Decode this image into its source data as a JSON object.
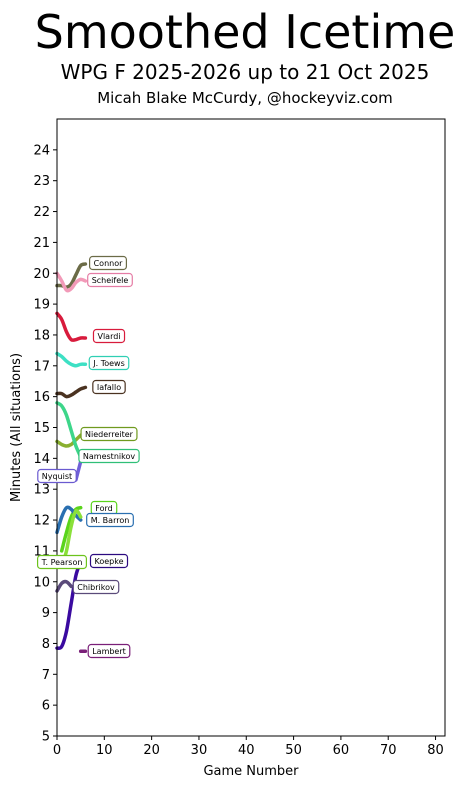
{
  "title": "Smoothed Icetime",
  "subtitle": "WPG F 2025-2026 up to 21 Oct 2025",
  "byline": "Micah Blake McCurdy, @hockeyviz.com",
  "chart_data": {
    "type": "line",
    "xlabel": "Game Number",
    "ylabel": "Minutes (All situations)",
    "xlim": [
      0,
      82
    ],
    "ylim": [
      5,
      25
    ],
    "xticks": [
      0,
      10,
      20,
      30,
      40,
      50,
      60,
      70,
      80
    ],
    "yticks": [
      5,
      6,
      7,
      8,
      9,
      10,
      11,
      12,
      13,
      14,
      15,
      16,
      17,
      18,
      19,
      20,
      21,
      22,
      23,
      24
    ],
    "grid": false,
    "legend": "none",
    "series": [
      {
        "name": "Connor",
        "color": "#6b6b47",
        "label_color": "#6b6b47",
        "x": [
          0,
          1,
          2,
          3,
          4,
          5,
          6
        ],
        "y": [
          19.6,
          19.6,
          19.55,
          19.65,
          19.95,
          20.25,
          20.3
        ]
      },
      {
        "name": "Scheifele",
        "color": "#f29ab8",
        "label_color": "#e57ca5",
        "x": [
          0,
          1,
          2,
          3,
          4,
          5,
          6
        ],
        "y": [
          20.0,
          19.75,
          19.45,
          19.5,
          19.7,
          19.8,
          19.75
        ]
      },
      {
        "name": "Vlardi",
        "color": "#d81b3c",
        "label_color": "#d81b3c",
        "x": [
          0,
          1,
          2,
          3,
          4,
          5,
          6
        ],
        "y": [
          18.7,
          18.5,
          18.1,
          17.85,
          17.85,
          17.9,
          17.9
        ]
      },
      {
        "name": "J. Toews",
        "color": "#3de0c4",
        "label_color": "#2fcfb3",
        "x": [
          0,
          1,
          2,
          3,
          4,
          5,
          6
        ],
        "y": [
          17.4,
          17.3,
          17.15,
          17.05,
          17.0,
          17.05,
          17.05
        ]
      },
      {
        "name": "Iafallo",
        "color": "#4a3220",
        "label_color": "#4a3220",
        "x": [
          0,
          1,
          2,
          3,
          4,
          5,
          6
        ],
        "y": [
          16.1,
          16.1,
          16.0,
          16.05,
          16.15,
          16.25,
          16.3
        ]
      },
      {
        "name": "Niederreiter",
        "color": "#8ab030",
        "label_color": "#6f9a1f",
        "x": [
          0,
          1,
          2,
          3,
          4,
          5
        ],
        "y": [
          14.55,
          14.45,
          14.4,
          14.45,
          14.6,
          14.75
        ]
      },
      {
        "name": "Namestnikov",
        "color": "#3dd68a",
        "label_color": "#2fbf77",
        "x": [
          0,
          1,
          2,
          3,
          4,
          5
        ],
        "y": [
          15.8,
          15.7,
          15.4,
          14.9,
          14.4,
          14.05
        ]
      },
      {
        "name": "Nyquist",
        "color": "#7060d8",
        "label_color": "#6a5ad0",
        "x": [
          4,
          4.5,
          5
        ],
        "y": [
          13.3,
          13.6,
          13.9
        ]
      },
      {
        "name": "Ford",
        "color": "#5ad41c",
        "label_color": "#5ad41c",
        "x": [
          1,
          2,
          3,
          4,
          5
        ],
        "y": [
          11.0,
          11.6,
          12.1,
          12.35,
          12.4
        ]
      },
      {
        "name": "M. Barron",
        "color": "#2a6fb0",
        "label_color": "#2a6fb0",
        "x": [
          0,
          1,
          2,
          3,
          4,
          5
        ],
        "y": [
          11.6,
          12.1,
          12.4,
          12.35,
          12.15,
          12.0
        ]
      },
      {
        "name": "T. Pearson",
        "color": "#8ae03a",
        "label_color": "#6cc31c",
        "x": [
          1,
          2,
          3,
          4,
          5
        ],
        "y": [
          10.5,
          11.0,
          11.8,
          12.3,
          12.1
        ]
      },
      {
        "name": "Koepke",
        "color": "#3a0aa0",
        "label_color": "#2c0a80",
        "x": [
          0,
          1,
          2,
          3,
          4,
          5
        ],
        "y": [
          7.85,
          7.9,
          8.4,
          9.3,
          10.2,
          10.65
        ]
      },
      {
        "name": "Chibrikov",
        "color": "#5a4a7a",
        "label_color": "#5a4a7a",
        "x": [
          0,
          1,
          2,
          3
        ],
        "y": [
          9.7,
          9.95,
          10.0,
          9.85
        ]
      },
      {
        "name": "Lambert",
        "color": "#7a1f78",
        "label_color": "#7a1f78",
        "x": [
          5,
          6
        ],
        "y": [
          7.75,
          7.75
        ]
      }
    ]
  }
}
